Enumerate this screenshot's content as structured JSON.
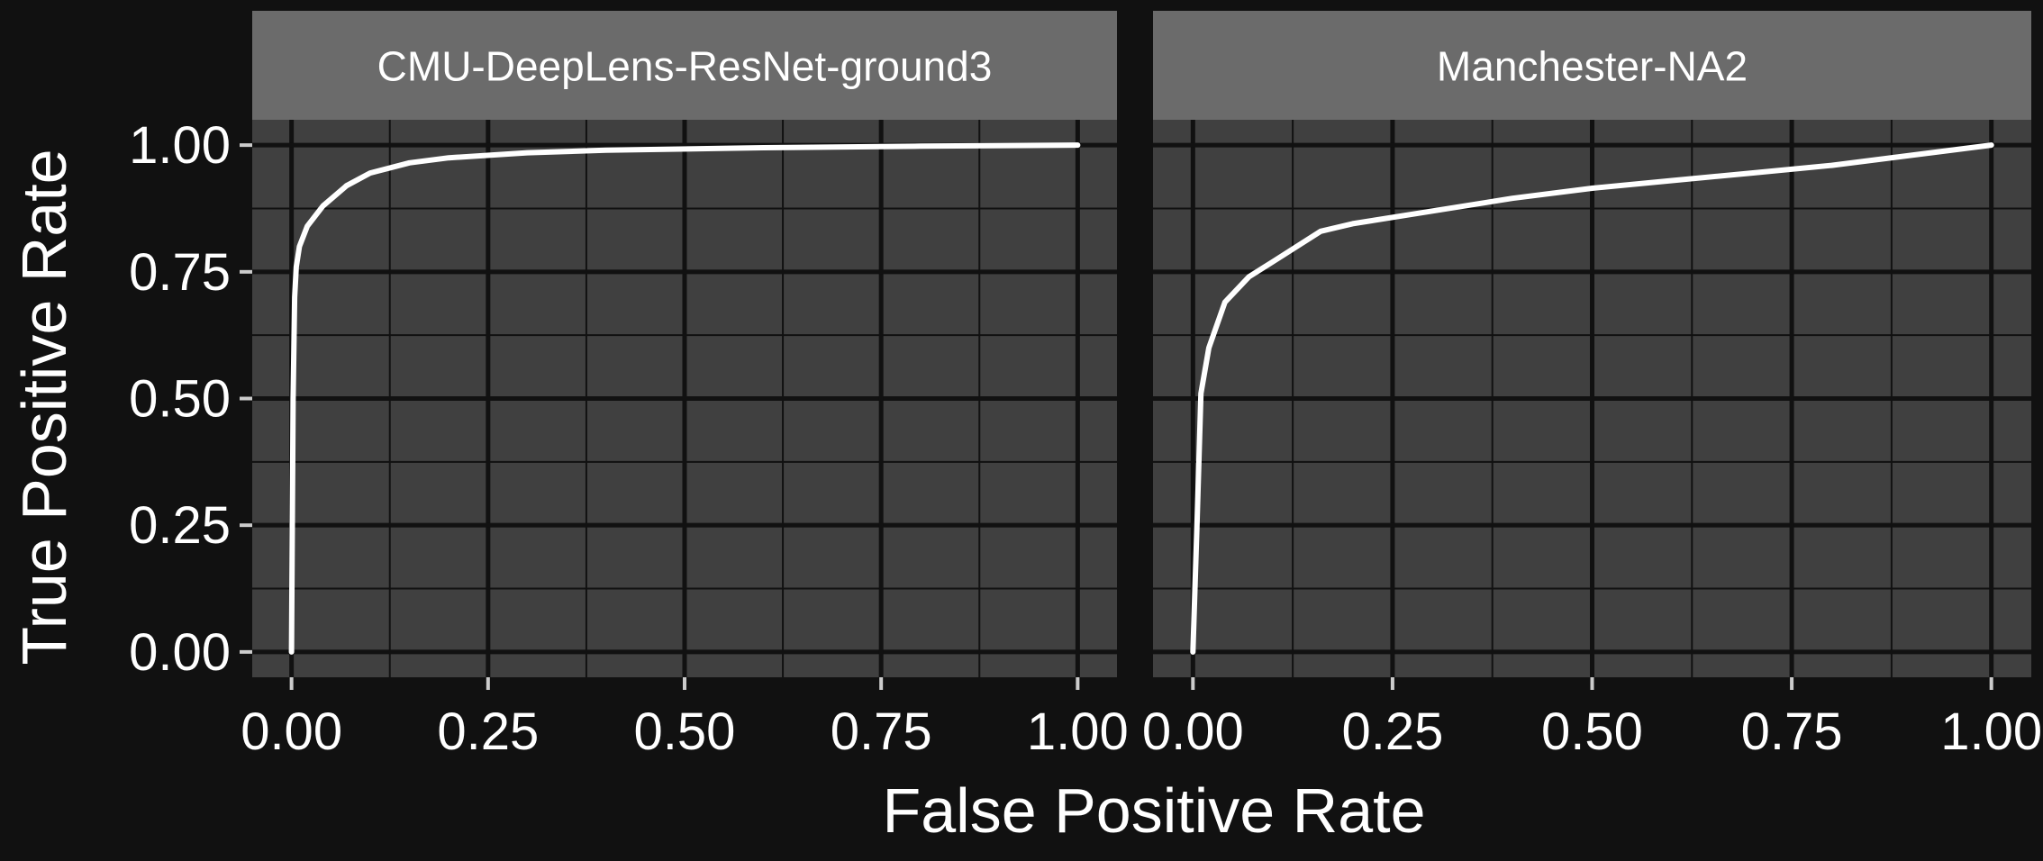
{
  "chart_data": {
    "type": "line",
    "xlabel": "False Positive Rate",
    "ylabel": "True Positive Rate",
    "xlim": [
      0,
      1
    ],
    "ylim": [
      0,
      1
    ],
    "grid": true,
    "theme": {
      "background": "#111111",
      "panel": "#404040",
      "strip": "#6b6b6b",
      "grid": "#111111",
      "line": "#ffffff",
      "text": "#ffffff"
    },
    "x_ticks": [
      "0.00",
      "0.25",
      "0.50",
      "0.75",
      "1.00"
    ],
    "y_ticks": [
      "0.00",
      "0.25",
      "0.50",
      "0.75",
      "1.00"
    ],
    "panels": [
      {
        "title": "CMU-DeepLens-ResNet-ground3",
        "x": [
          0,
          0.002,
          0.004,
          0.006,
          0.01,
          0.02,
          0.04,
          0.07,
          0.1,
          0.15,
          0.2,
          0.3,
          0.4,
          0.6,
          0.8,
          1.0
        ],
        "y": [
          0,
          0.5,
          0.7,
          0.76,
          0.8,
          0.84,
          0.88,
          0.92,
          0.945,
          0.965,
          0.975,
          0.985,
          0.99,
          0.995,
          0.998,
          1.0
        ]
      },
      {
        "title": "Manchester-NA2",
        "x": [
          0,
          0.005,
          0.01,
          0.02,
          0.04,
          0.07,
          0.1,
          0.16,
          0.2,
          0.3,
          0.4,
          0.5,
          0.6,
          0.7,
          0.8,
          0.9,
          1.0
        ],
        "y": [
          0,
          0.25,
          0.51,
          0.6,
          0.69,
          0.74,
          0.77,
          0.83,
          0.845,
          0.87,
          0.895,
          0.915,
          0.93,
          0.945,
          0.96,
          0.98,
          1.0
        ]
      }
    ]
  }
}
